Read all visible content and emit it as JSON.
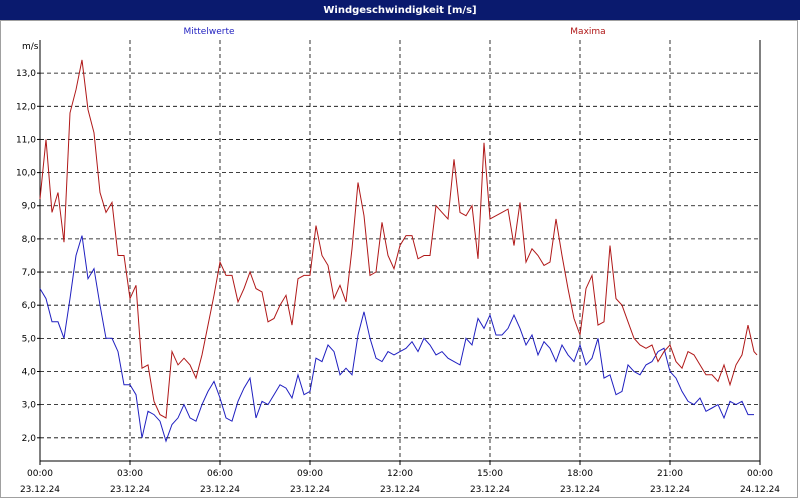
{
  "window": {
    "title": "Windgeschwindigkeit [m/s]"
  },
  "chart_data": {
    "type": "line",
    "title": "Windgeschwindigkeit [m/s]",
    "ylabel": "m/s",
    "ylim": [
      1.3,
      14.0
    ],
    "yticks": [
      "2,0",
      "3,0",
      "4,0",
      "5,0",
      "6,0",
      "7,0",
      "8,0",
      "9,0",
      "10,0",
      "11,0",
      "12,0",
      "13,0"
    ],
    "xlim": [
      0,
      24
    ],
    "xticks": [
      {
        "time": "00:00",
        "date": "23.12.24"
      },
      {
        "time": "03:00",
        "date": "23.12.24"
      },
      {
        "time": "06:00",
        "date": "23.12.24"
      },
      {
        "time": "09:00",
        "date": "23.12.24"
      },
      {
        "time": "12:00",
        "date": "23.12.24"
      },
      {
        "time": "15:00",
        "date": "23.12.24"
      },
      {
        "time": "18:00",
        "date": "23.12.24"
      },
      {
        "time": "21:00",
        "date": "23.12.24"
      },
      {
        "time": "00:00",
        "date": "24.12.24"
      }
    ],
    "grid": true,
    "x_hours": [
      0,
      0.2,
      0.4,
      0.6,
      0.8,
      1,
      1.2,
      1.4,
      1.6,
      1.8,
      2,
      2.2,
      2.4,
      2.6,
      2.8,
      3,
      3.2,
      3.4,
      3.6,
      3.8,
      4,
      4.2,
      4.4,
      4.6,
      4.8,
      5,
      5.2,
      5.4,
      5.6,
      5.8,
      6,
      6.2,
      6.4,
      6.6,
      6.8,
      7,
      7.2,
      7.4,
      7.6,
      7.8,
      8,
      8.2,
      8.4,
      8.6,
      8.8,
      9,
      9.2,
      9.4,
      9.6,
      9.8,
      10,
      10.2,
      10.4,
      10.6,
      10.8,
      11,
      11.2,
      11.4,
      11.6,
      11.8,
      12,
      12.2,
      12.4,
      12.6,
      12.8,
      13,
      13.2,
      13.4,
      13.6,
      13.8,
      14,
      14.2,
      14.4,
      14.6,
      14.8,
      15,
      15.2,
      15.4,
      15.6,
      15.8,
      16,
      16.2,
      16.4,
      16.6,
      16.8,
      17,
      17.2,
      17.4,
      17.6,
      17.8,
      18,
      18.2,
      18.4,
      18.6,
      18.8,
      19,
      19.2,
      19.4,
      19.6,
      19.8,
      20,
      20.2,
      20.4,
      20.6,
      20.8,
      21,
      21.2,
      21.4,
      21.6,
      21.8,
      22,
      22.2,
      22.4,
      22.6,
      22.8,
      23,
      23.2,
      23.4,
      23.6,
      23.8,
      23.9
    ],
    "series": [
      {
        "name": "Mittelwerte",
        "color": "#1f1fc0",
        "values": [
          6.5,
          6.2,
          5.5,
          5.5,
          5.0,
          6.2,
          7.5,
          8.1,
          6.8,
          7.1,
          6.0,
          5.0,
          5.0,
          4.6,
          3.6,
          3.6,
          3.3,
          2.0,
          2.8,
          2.7,
          2.5,
          1.9,
          2.4,
          2.6,
          3.0,
          2.6,
          2.5,
          3.0,
          3.4,
          3.7,
          3.2,
          2.6,
          2.5,
          3.1,
          3.5,
          3.8,
          2.6,
          3.1,
          3.0,
          3.3,
          3.6,
          3.5,
          3.2,
          3.9,
          3.3,
          3.4,
          4.4,
          4.3,
          4.8,
          4.6,
          3.9,
          4.1,
          3.9,
          5.1,
          5.8,
          5.0,
          4.4,
          4.3,
          4.6,
          4.5,
          4.6,
          4.7,
          4.9,
          4.6,
          5.0,
          4.8,
          4.5,
          4.6,
          4.4,
          4.3,
          4.2,
          5.0,
          4.8,
          5.6,
          5.3,
          5.7,
          5.1,
          5.1,
          5.3,
          5.7,
          5.3,
          4.8,
          5.1,
          4.5,
          4.9,
          4.7,
          4.3,
          4.8,
          4.5,
          4.3,
          4.8,
          4.2,
          4.4,
          5.0,
          3.8,
          3.9,
          3.3,
          3.4,
          4.2,
          4.0,
          3.9,
          4.2,
          4.3,
          4.6,
          4.7,
          4.0,
          3.8,
          3.4,
          3.1,
          3.0,
          3.2,
          2.8,
          2.9,
          3.0,
          2.6,
          3.1,
          3.0,
          3.1,
          2.7,
          2.7
        ]
      },
      {
        "name": "Maxima",
        "color": "#b01818",
        "values": [
          9.2,
          11.0,
          8.8,
          9.4,
          7.9,
          11.8,
          12.5,
          13.4,
          11.9,
          11.2,
          9.4,
          8.8,
          9.1,
          7.5,
          7.5,
          6.2,
          6.6,
          4.1,
          4.2,
          3.1,
          2.7,
          2.6,
          4.6,
          4.2,
          4.4,
          4.2,
          3.8,
          4.5,
          5.4,
          6.3,
          7.3,
          6.9,
          6.9,
          6.1,
          6.5,
          7.0,
          6.5,
          6.4,
          5.5,
          5.6,
          6.0,
          6.3,
          5.4,
          6.8,
          6.9,
          6.9,
          8.4,
          7.5,
          7.2,
          6.2,
          6.6,
          6.1,
          7.7,
          9.7,
          8.7,
          6.9,
          7.0,
          8.5,
          7.5,
          7.1,
          7.8,
          8.1,
          8.1,
          7.4,
          7.5,
          7.5,
          9.0,
          8.8,
          8.6,
          10.4,
          8.8,
          8.7,
          9.0,
          7.4,
          10.9,
          8.6,
          8.7,
          8.8,
          8.9,
          7.8,
          9.1,
          7.3,
          7.7,
          7.5,
          7.2,
          7.3,
          8.6,
          7.5,
          6.5,
          5.6,
          5.1,
          6.5,
          6.9,
          5.4,
          5.5,
          7.8,
          6.2,
          6.0,
          5.5,
          5.0,
          4.8,
          4.7,
          4.8,
          4.3,
          4.6,
          4.8,
          4.3,
          4.1,
          4.6,
          4.5,
          4.2,
          3.9,
          3.9,
          3.7,
          4.2,
          3.6,
          4.2,
          4.5,
          5.4,
          4.6,
          4.5
        ]
      }
    ]
  }
}
